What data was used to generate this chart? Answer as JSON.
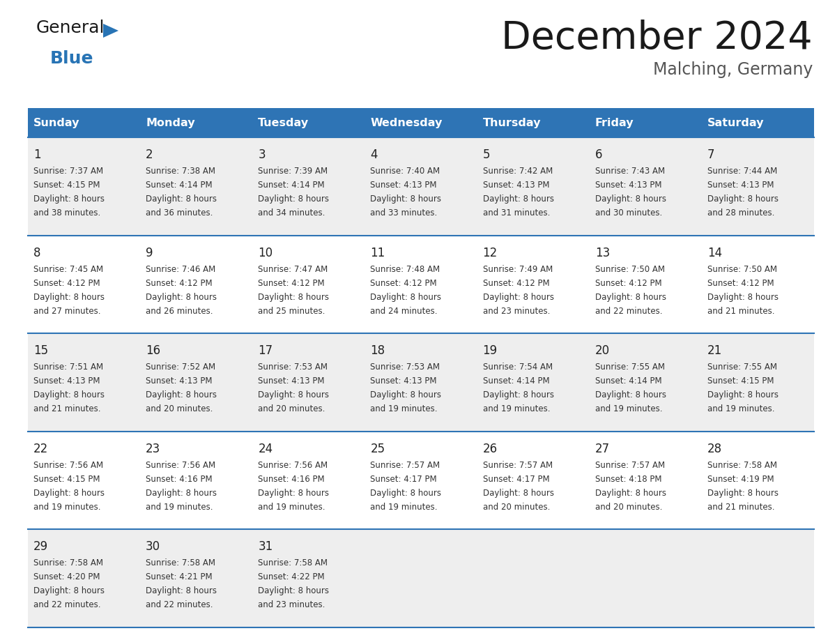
{
  "title": "December 2024",
  "subtitle": "Malching, Germany",
  "header_bg": "#2E74B5",
  "header_text_color": "#FFFFFF",
  "row_bg_alt": "#EEEEEE",
  "row_bg_white": "#FFFFFF",
  "border_color": "#2E74B5",
  "day_headers": [
    "Sunday",
    "Monday",
    "Tuesday",
    "Wednesday",
    "Thursday",
    "Friday",
    "Saturday"
  ],
  "weeks": [
    [
      {
        "day": 1,
        "sunrise": "7:37 AM",
        "sunset": "4:15 PM",
        "daylight": "8 hours and 38 minutes."
      },
      {
        "day": 2,
        "sunrise": "7:38 AM",
        "sunset": "4:14 PM",
        "daylight": "8 hours and 36 minutes."
      },
      {
        "day": 3,
        "sunrise": "7:39 AM",
        "sunset": "4:14 PM",
        "daylight": "8 hours and 34 minutes."
      },
      {
        "day": 4,
        "sunrise": "7:40 AM",
        "sunset": "4:13 PM",
        "daylight": "8 hours and 33 minutes."
      },
      {
        "day": 5,
        "sunrise": "7:42 AM",
        "sunset": "4:13 PM",
        "daylight": "8 hours and 31 minutes."
      },
      {
        "day": 6,
        "sunrise": "7:43 AM",
        "sunset": "4:13 PM",
        "daylight": "8 hours and 30 minutes."
      },
      {
        "day": 7,
        "sunrise": "7:44 AM",
        "sunset": "4:13 PM",
        "daylight": "8 hours and 28 minutes."
      }
    ],
    [
      {
        "day": 8,
        "sunrise": "7:45 AM",
        "sunset": "4:12 PM",
        "daylight": "8 hours and 27 minutes."
      },
      {
        "day": 9,
        "sunrise": "7:46 AM",
        "sunset": "4:12 PM",
        "daylight": "8 hours and 26 minutes."
      },
      {
        "day": 10,
        "sunrise": "7:47 AM",
        "sunset": "4:12 PM",
        "daylight": "8 hours and 25 minutes."
      },
      {
        "day": 11,
        "sunrise": "7:48 AM",
        "sunset": "4:12 PM",
        "daylight": "8 hours and 24 minutes."
      },
      {
        "day": 12,
        "sunrise": "7:49 AM",
        "sunset": "4:12 PM",
        "daylight": "8 hours and 23 minutes."
      },
      {
        "day": 13,
        "sunrise": "7:50 AM",
        "sunset": "4:12 PM",
        "daylight": "8 hours and 22 minutes."
      },
      {
        "day": 14,
        "sunrise": "7:50 AM",
        "sunset": "4:12 PM",
        "daylight": "8 hours and 21 minutes."
      }
    ],
    [
      {
        "day": 15,
        "sunrise": "7:51 AM",
        "sunset": "4:13 PM",
        "daylight": "8 hours and 21 minutes."
      },
      {
        "day": 16,
        "sunrise": "7:52 AM",
        "sunset": "4:13 PM",
        "daylight": "8 hours and 20 minutes."
      },
      {
        "day": 17,
        "sunrise": "7:53 AM",
        "sunset": "4:13 PM",
        "daylight": "8 hours and 20 minutes."
      },
      {
        "day": 18,
        "sunrise": "7:53 AM",
        "sunset": "4:13 PM",
        "daylight": "8 hours and 19 minutes."
      },
      {
        "day": 19,
        "sunrise": "7:54 AM",
        "sunset": "4:14 PM",
        "daylight": "8 hours and 19 minutes."
      },
      {
        "day": 20,
        "sunrise": "7:55 AM",
        "sunset": "4:14 PM",
        "daylight": "8 hours and 19 minutes."
      },
      {
        "day": 21,
        "sunrise": "7:55 AM",
        "sunset": "4:15 PM",
        "daylight": "8 hours and 19 minutes."
      }
    ],
    [
      {
        "day": 22,
        "sunrise": "7:56 AM",
        "sunset": "4:15 PM",
        "daylight": "8 hours and 19 minutes."
      },
      {
        "day": 23,
        "sunrise": "7:56 AM",
        "sunset": "4:16 PM",
        "daylight": "8 hours and 19 minutes."
      },
      {
        "day": 24,
        "sunrise": "7:56 AM",
        "sunset": "4:16 PM",
        "daylight": "8 hours and 19 minutes."
      },
      {
        "day": 25,
        "sunrise": "7:57 AM",
        "sunset": "4:17 PM",
        "daylight": "8 hours and 19 minutes."
      },
      {
        "day": 26,
        "sunrise": "7:57 AM",
        "sunset": "4:17 PM",
        "daylight": "8 hours and 20 minutes."
      },
      {
        "day": 27,
        "sunrise": "7:57 AM",
        "sunset": "4:18 PM",
        "daylight": "8 hours and 20 minutes."
      },
      {
        "day": 28,
        "sunrise": "7:58 AM",
        "sunset": "4:19 PM",
        "daylight": "8 hours and 21 minutes."
      }
    ],
    [
      {
        "day": 29,
        "sunrise": "7:58 AM",
        "sunset": "4:20 PM",
        "daylight": "8 hours and 22 minutes."
      },
      {
        "day": 30,
        "sunrise": "7:58 AM",
        "sunset": "4:21 PM",
        "daylight": "8 hours and 22 minutes."
      },
      {
        "day": 31,
        "sunrise": "7:58 AM",
        "sunset": "4:22 PM",
        "daylight": "8 hours and 23 minutes."
      },
      null,
      null,
      null,
      null
    ]
  ],
  "logo_text_general": "General",
  "logo_text_blue": "Blue",
  "logo_color_general": "#1A1A1A",
  "logo_color_blue": "#2874B5",
  "logo_triangle_color": "#2874B5",
  "fig_width": 11.88,
  "fig_height": 9.18,
  "dpi": 100
}
